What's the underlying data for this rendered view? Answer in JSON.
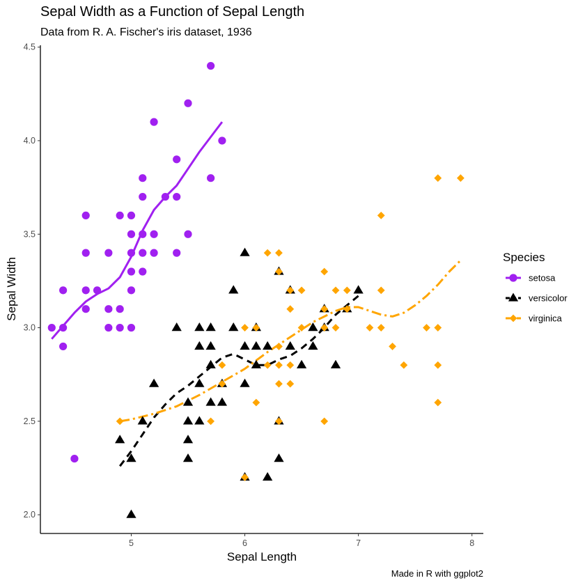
{
  "chart_data": {
    "type": "scatter",
    "title": "Sepal Width as a Function of Sepal Length",
    "subtitle": "Data from R. A. Fischer's iris dataset, 1936",
    "xlabel": "Sepal Length",
    "ylabel": "Sepal Width",
    "caption": "Made in R with ggplot2",
    "xlim": [
      4.2,
      8.1
    ],
    "ylim": [
      1.9,
      4.51
    ],
    "xticks": [
      5,
      6,
      7,
      8
    ],
    "yticks": [
      2.0,
      2.5,
      3.0,
      3.5,
      4.0,
      4.5
    ],
    "xtick_labels": [
      "5",
      "6",
      "7",
      "8"
    ],
    "ytick_labels": [
      "2.0",
      "2.5",
      "3.0",
      "3.5",
      "4.0",
      "4.5"
    ],
    "grid": false,
    "legend": {
      "title": "Species",
      "position": "right"
    },
    "series": [
      {
        "name": "setosa",
        "color": "#a020f0",
        "marker": "circle",
        "line_style": "solid",
        "points": [
          [
            4.3,
            3.0
          ],
          [
            4.4,
            2.9
          ],
          [
            4.4,
            3.0
          ],
          [
            4.4,
            3.2
          ],
          [
            4.5,
            2.3
          ],
          [
            4.6,
            3.1
          ],
          [
            4.6,
            3.2
          ],
          [
            4.6,
            3.4
          ],
          [
            4.6,
            3.6
          ],
          [
            4.7,
            3.2
          ],
          [
            4.8,
            3.0
          ],
          [
            4.8,
            3.1
          ],
          [
            4.8,
            3.4
          ],
          [
            4.9,
            3.0
          ],
          [
            4.9,
            3.1
          ],
          [
            4.9,
            3.6
          ],
          [
            5.0,
            3.0
          ],
          [
            5.0,
            3.2
          ],
          [
            5.0,
            3.3
          ],
          [
            5.0,
            3.4
          ],
          [
            5.0,
            3.5
          ],
          [
            5.0,
            3.6
          ],
          [
            5.1,
            3.3
          ],
          [
            5.1,
            3.4
          ],
          [
            5.1,
            3.5
          ],
          [
            5.1,
            3.7
          ],
          [
            5.1,
            3.8
          ],
          [
            5.2,
            3.4
          ],
          [
            5.2,
            3.5
          ],
          [
            5.2,
            4.1
          ],
          [
            5.3,
            3.7
          ],
          [
            5.4,
            3.4
          ],
          [
            5.4,
            3.7
          ],
          [
            5.4,
            3.9
          ],
          [
            5.5,
            3.5
          ],
          [
            5.5,
            4.2
          ],
          [
            5.7,
            3.8
          ],
          [
            5.7,
            4.4
          ],
          [
            5.8,
            4.0
          ]
        ],
        "smooth": [
          [
            4.3,
            2.94
          ],
          [
            4.4,
            3.01
          ],
          [
            4.5,
            3.08
          ],
          [
            4.6,
            3.14
          ],
          [
            4.7,
            3.18
          ],
          [
            4.8,
            3.21
          ],
          [
            4.9,
            3.27
          ],
          [
            5.0,
            3.38
          ],
          [
            5.1,
            3.52
          ],
          [
            5.2,
            3.63
          ],
          [
            5.3,
            3.7
          ],
          [
            5.4,
            3.76
          ],
          [
            5.5,
            3.85
          ],
          [
            5.6,
            3.94
          ],
          [
            5.7,
            4.02
          ],
          [
            5.8,
            4.1
          ]
        ]
      },
      {
        "name": "versicolor",
        "color": "#000000",
        "marker": "triangle",
        "line_style": "dashed",
        "points": [
          [
            4.9,
            2.4
          ],
          [
            5.0,
            2.0
          ],
          [
            5.0,
            2.3
          ],
          [
            5.1,
            2.5
          ],
          [
            5.2,
            2.7
          ],
          [
            5.4,
            3.0
          ],
          [
            5.5,
            2.3
          ],
          [
            5.5,
            2.4
          ],
          [
            5.5,
            2.5
          ],
          [
            5.5,
            2.6
          ],
          [
            5.6,
            2.5
          ],
          [
            5.6,
            2.7
          ],
          [
            5.6,
            2.9
          ],
          [
            5.6,
            3.0
          ],
          [
            5.7,
            2.6
          ],
          [
            5.7,
            2.8
          ],
          [
            5.7,
            2.9
          ],
          [
            5.7,
            3.0
          ],
          [
            5.8,
            2.6
          ],
          [
            5.8,
            2.7
          ],
          [
            5.9,
            3.0
          ],
          [
            5.9,
            3.2
          ],
          [
            6.0,
            2.2
          ],
          [
            6.0,
            2.7
          ],
          [
            6.0,
            2.9
          ],
          [
            6.0,
            3.4
          ],
          [
            6.1,
            2.8
          ],
          [
            6.1,
            2.9
          ],
          [
            6.1,
            3.0
          ],
          [
            6.2,
            2.2
          ],
          [
            6.2,
            2.9
          ],
          [
            6.3,
            2.3
          ],
          [
            6.3,
            2.5
          ],
          [
            6.3,
            3.3
          ],
          [
            6.4,
            2.9
          ],
          [
            6.4,
            3.2
          ],
          [
            6.5,
            2.8
          ],
          [
            6.6,
            2.9
          ],
          [
            6.6,
            3.0
          ],
          [
            6.7,
            3.0
          ],
          [
            6.7,
            3.1
          ],
          [
            6.8,
            2.8
          ],
          [
            6.9,
            3.1
          ],
          [
            7.0,
            3.2
          ]
        ],
        "smooth": [
          [
            4.9,
            2.26
          ],
          [
            5.0,
            2.34
          ],
          [
            5.1,
            2.43
          ],
          [
            5.2,
            2.52
          ],
          [
            5.3,
            2.59
          ],
          [
            5.4,
            2.65
          ],
          [
            5.5,
            2.69
          ],
          [
            5.6,
            2.74
          ],
          [
            5.7,
            2.79
          ],
          [
            5.8,
            2.84
          ],
          [
            5.9,
            2.86
          ],
          [
            6.0,
            2.83
          ],
          [
            6.1,
            2.8
          ],
          [
            6.2,
            2.8
          ],
          [
            6.3,
            2.83
          ],
          [
            6.4,
            2.85
          ],
          [
            6.5,
            2.89
          ],
          [
            6.6,
            2.94
          ],
          [
            6.7,
            3.0
          ],
          [
            6.8,
            3.07
          ],
          [
            6.9,
            3.12
          ],
          [
            7.0,
            3.17
          ]
        ]
      },
      {
        "name": "virginica",
        "color": "#ffa500",
        "marker": "diamond",
        "line_style": "dotdash",
        "points": [
          [
            4.9,
            2.5
          ],
          [
            5.7,
            2.5
          ],
          [
            5.8,
            2.7
          ],
          [
            5.8,
            2.8
          ],
          [
            6.0,
            2.2
          ],
          [
            6.0,
            3.0
          ],
          [
            6.1,
            2.6
          ],
          [
            6.1,
            3.0
          ],
          [
            6.2,
            2.8
          ],
          [
            6.2,
            3.4
          ],
          [
            6.3,
            2.5
          ],
          [
            6.3,
            2.7
          ],
          [
            6.3,
            2.8
          ],
          [
            6.3,
            2.9
          ],
          [
            6.3,
            3.3
          ],
          [
            6.3,
            3.4
          ],
          [
            6.4,
            2.7
          ],
          [
            6.4,
            2.8
          ],
          [
            6.4,
            3.1
          ],
          [
            6.4,
            3.2
          ],
          [
            6.5,
            3.0
          ],
          [
            6.5,
            3.2
          ],
          [
            6.7,
            2.5
          ],
          [
            6.7,
            3.0
          ],
          [
            6.7,
            3.1
          ],
          [
            6.7,
            3.3
          ],
          [
            6.8,
            3.0
          ],
          [
            6.8,
            3.2
          ],
          [
            6.9,
            3.1
          ],
          [
            6.9,
            3.2
          ],
          [
            7.1,
            3.0
          ],
          [
            7.2,
            3.0
          ],
          [
            7.2,
            3.2
          ],
          [
            7.2,
            3.6
          ],
          [
            7.3,
            2.9
          ],
          [
            7.4,
            2.8
          ],
          [
            7.6,
            3.0
          ],
          [
            7.7,
            2.6
          ],
          [
            7.7,
            2.8
          ],
          [
            7.7,
            3.0
          ],
          [
            7.7,
            3.8
          ],
          [
            7.9,
            3.8
          ]
        ],
        "smooth": [
          [
            4.9,
            2.5
          ],
          [
            5.0,
            2.51
          ],
          [
            5.2,
            2.54
          ],
          [
            5.4,
            2.58
          ],
          [
            5.6,
            2.64
          ],
          [
            5.8,
            2.71
          ],
          [
            6.0,
            2.78
          ],
          [
            6.2,
            2.87
          ],
          [
            6.4,
            2.95
          ],
          [
            6.6,
            3.03
          ],
          [
            6.8,
            3.09
          ],
          [
            6.9,
            3.11
          ],
          [
            7.0,
            3.11
          ],
          [
            7.1,
            3.09
          ],
          [
            7.2,
            3.07
          ],
          [
            7.3,
            3.06
          ],
          [
            7.4,
            3.08
          ],
          [
            7.5,
            3.12
          ],
          [
            7.6,
            3.17
          ],
          [
            7.7,
            3.23
          ],
          [
            7.8,
            3.3
          ],
          [
            7.9,
            3.36
          ]
        ]
      }
    ]
  }
}
